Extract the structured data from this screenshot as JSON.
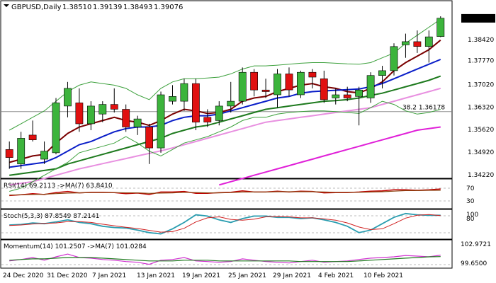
{
  "colors": {
    "background": "#ffffff",
    "bull": "#3cb43c",
    "bear": "#e01010",
    "fib": "#808080",
    "price_box": "#000000",
    "price_text": "#ffffff"
  },
  "chart_data": {
    "type": "candlestick",
    "symbol": "GBPUSD,Daily",
    "ohlc_header": [
      "1.38510",
      "1.39139",
      "1.38493",
      "1.39076"
    ],
    "last_price": "1.39076",
    "y_ticks": [
      "1.38420",
      "1.37770",
      "1.37020",
      "1.36320",
      "1.35620",
      "1.34920",
      "1.34220"
    ],
    "x_labels": [
      "24 Dec 2020",
      "31 Dec 2020",
      "7 Jan 2021",
      "13 Jan 2021",
      "19 Jan 2021",
      "25 Jan 2021",
      "29 Jan 2021",
      "4 Feb 2021",
      "10 Feb 2021"
    ],
    "fib_label": "38.2 1.36178",
    "fib_level": 1.36178,
    "ylim": [
      1.3415,
      1.3925
    ],
    "candles": [
      {
        "o": 1.35,
        "h": 1.3525,
        "l": 1.344,
        "c": 1.3475
      },
      {
        "o": 1.3455,
        "h": 1.3555,
        "l": 1.344,
        "c": 1.3535
      },
      {
        "o": 1.3545,
        "h": 1.359,
        "l": 1.3525,
        "c": 1.353
      },
      {
        "o": 1.347,
        "h": 1.3525,
        "l": 1.3455,
        "c": 1.3495
      },
      {
        "o": 1.349,
        "h": 1.366,
        "l": 1.3485,
        "c": 1.3645
      },
      {
        "o": 1.3635,
        "h": 1.371,
        "l": 1.36,
        "c": 1.369
      },
      {
        "o": 1.3645,
        "h": 1.369,
        "l": 1.3555,
        "c": 1.358
      },
      {
        "o": 1.358,
        "h": 1.365,
        "l": 1.356,
        "c": 1.3635
      },
      {
        "o": 1.361,
        "h": 1.365,
        "l": 1.3585,
        "c": 1.364
      },
      {
        "o": 1.364,
        "h": 1.369,
        "l": 1.3615,
        "c": 1.3625
      },
      {
        "o": 1.3625,
        "h": 1.364,
        "l": 1.3555,
        "c": 1.357
      },
      {
        "o": 1.357,
        "h": 1.3605,
        "l": 1.3545,
        "c": 1.3595
      },
      {
        "o": 1.357,
        "h": 1.358,
        "l": 1.3455,
        "c": 1.3505
      },
      {
        "o": 1.3505,
        "h": 1.368,
        "l": 1.349,
        "c": 1.367
      },
      {
        "o": 1.365,
        "h": 1.37,
        "l": 1.364,
        "c": 1.3665
      },
      {
        "o": 1.365,
        "h": 1.372,
        "l": 1.362,
        "c": 1.3705
      },
      {
        "o": 1.3705,
        "h": 1.372,
        "l": 1.356,
        "c": 1.3585
      },
      {
        "o": 1.36,
        "h": 1.3625,
        "l": 1.357,
        "c": 1.3585
      },
      {
        "o": 1.359,
        "h": 1.365,
        "l": 1.3575,
        "c": 1.3635
      },
      {
        "o": 1.3635,
        "h": 1.371,
        "l": 1.3615,
        "c": 1.365
      },
      {
        "o": 1.365,
        "h": 1.3755,
        "l": 1.364,
        "c": 1.374
      },
      {
        "o": 1.374,
        "h": 1.375,
        "l": 1.3665,
        "c": 1.3685
      },
      {
        "o": 1.3685,
        "h": 1.372,
        "l": 1.366,
        "c": 1.368
      },
      {
        "o": 1.367,
        "h": 1.375,
        "l": 1.363,
        "c": 1.3735
      },
      {
        "o": 1.3735,
        "h": 1.3755,
        "l": 1.3665,
        "c": 1.3685
      },
      {
        "o": 1.367,
        "h": 1.3745,
        "l": 1.366,
        "c": 1.374
      },
      {
        "o": 1.374,
        "h": 1.375,
        "l": 1.369,
        "c": 1.3725
      },
      {
        "o": 1.372,
        "h": 1.3745,
        "l": 1.3645,
        "c": 1.3655
      },
      {
        "o": 1.366,
        "h": 1.369,
        "l": 1.364,
        "c": 1.367
      },
      {
        "o": 1.367,
        "h": 1.3695,
        "l": 1.365,
        "c": 1.366
      },
      {
        "o": 1.3665,
        "h": 1.3695,
        "l": 1.3575,
        "c": 1.3685
      },
      {
        "o": 1.366,
        "h": 1.374,
        "l": 1.3645,
        "c": 1.373
      },
      {
        "o": 1.373,
        "h": 1.376,
        "l": 1.369,
        "c": 1.3745
      },
      {
        "o": 1.3745,
        "h": 1.383,
        "l": 1.373,
        "c": 1.382
      },
      {
        "o": 1.3825,
        "h": 1.386,
        "l": 1.3785,
        "c": 1.3835
      },
      {
        "o": 1.3835,
        "h": 1.387,
        "l": 1.38,
        "c": 1.382
      },
      {
        "o": 1.382,
        "h": 1.387,
        "l": 1.377,
        "c": 1.385
      },
      {
        "o": 1.3851,
        "h": 1.3914,
        "l": 1.3849,
        "c": 1.3908
      }
    ],
    "overlays": [
      {
        "id": "ema-fast",
        "color": "#7a0000",
        "values": [
          1.346,
          1.347,
          1.348,
          1.3485,
          1.352,
          1.355,
          1.357,
          1.358,
          1.359,
          1.36,
          1.359,
          1.3585,
          1.3575,
          1.359,
          1.361,
          1.3625,
          1.362,
          1.3612,
          1.3615,
          1.3625,
          1.365,
          1.366,
          1.3665,
          1.368,
          1.369,
          1.37,
          1.3705,
          1.3695,
          1.369,
          1.368,
          1.3676,
          1.369,
          1.371,
          1.3745,
          1.377,
          1.379,
          1.381,
          1.384
        ]
      },
      {
        "id": "ema-mid",
        "color": "#0a1ec8",
        "values": [
          1.3445,
          1.345,
          1.3455,
          1.346,
          1.3475,
          1.3495,
          1.3515,
          1.3525,
          1.354,
          1.3555,
          1.3565,
          1.357,
          1.357,
          1.3575,
          1.359,
          1.36,
          1.3605,
          1.3605,
          1.361,
          1.362,
          1.363,
          1.364,
          1.365,
          1.366,
          1.3665,
          1.3675,
          1.368,
          1.3682,
          1.3684,
          1.3686,
          1.3688,
          1.3695,
          1.3705,
          1.372,
          1.3735,
          1.375,
          1.3765,
          1.378
        ]
      },
      {
        "id": "sma-green",
        "color": "#1e7a1e",
        "values": [
          1.342,
          1.3425,
          1.343,
          1.3435,
          1.344,
          1.3455,
          1.3465,
          1.3475,
          1.3485,
          1.3495,
          1.3505,
          1.3515,
          1.3525,
          1.3535,
          1.355,
          1.356,
          1.357,
          1.3575,
          1.3585,
          1.3595,
          1.3605,
          1.3615,
          1.3625,
          1.363,
          1.3635,
          1.364,
          1.3645,
          1.365,
          1.3652,
          1.3655,
          1.366,
          1.3668,
          1.3675,
          1.3685,
          1.3695,
          1.3705,
          1.3715,
          1.3728
        ]
      },
      {
        "id": "sma-pink",
        "color": "#e890e0",
        "values": [
          1.339,
          1.3395,
          1.34,
          1.341,
          1.342,
          1.343,
          1.344,
          1.3448,
          1.3456,
          1.3464,
          1.3472,
          1.348,
          1.3488,
          1.3496,
          1.3505,
          1.3515,
          1.3525,
          1.3535,
          1.3545,
          1.3555,
          1.3565,
          1.3575,
          1.3585,
          1.359,
          1.3595,
          1.36,
          1.3605,
          1.361,
          1.3615,
          1.362,
          1.3625,
          1.363,
          1.364,
          1.365,
          1.366,
          1.367,
          1.368,
          1.369
        ]
      },
      {
        "id": "sma-magenta",
        "color": "#e020d8",
        "values": [
          null,
          null,
          null,
          null,
          null,
          null,
          null,
          null,
          null,
          null,
          null,
          null,
          null,
          null,
          null,
          null,
          null,
          null,
          1.339,
          1.34,
          1.341,
          1.342,
          1.343,
          1.344,
          1.345,
          1.346,
          1.347,
          1.348,
          1.349,
          1.35,
          1.351,
          1.352,
          1.353,
          1.354,
          1.355,
          1.356,
          1.3565,
          1.357
        ]
      },
      {
        "id": "bb-upper",
        "color": "#3ca03c",
        "values": [
          1.356,
          1.358,
          1.36,
          1.362,
          1.365,
          1.368,
          1.37,
          1.371,
          1.3705,
          1.37,
          1.369,
          1.367,
          1.3655,
          1.369,
          1.371,
          1.372,
          1.372,
          1.3722,
          1.3725,
          1.3735,
          1.375,
          1.376,
          1.376,
          1.3762,
          1.3765,
          1.3768,
          1.377,
          1.377,
          1.3768,
          1.3766,
          1.3765,
          1.377,
          1.3785,
          1.38,
          1.383,
          1.3855,
          1.388,
          1.3905
        ]
      },
      {
        "id": "bb-lower",
        "color": "#3ca03c",
        "values": [
          1.337,
          1.338,
          1.34,
          1.342,
          1.344,
          1.346,
          1.349,
          1.35,
          1.351,
          1.352,
          1.354,
          1.352,
          1.3495,
          1.348,
          1.35,
          1.352,
          1.353,
          1.354,
          1.3555,
          1.357,
          1.359,
          1.36,
          1.36,
          1.361,
          1.3615,
          1.3618,
          1.362,
          1.362,
          1.3618,
          1.3615,
          1.3612,
          1.363,
          1.365,
          1.364,
          1.362,
          1.361,
          1.3615,
          1.3625
        ]
      }
    ],
    "rsi": {
      "label": "RSI(14) 69.2113 ->MA(7) 63.8410",
      "levels": [
        "70",
        "30"
      ],
      "values": [
        45,
        48,
        52,
        49,
        56,
        60,
        55,
        57,
        57,
        56,
        52,
        54,
        49,
        58,
        58,
        60,
        53,
        53,
        56,
        57,
        62,
        58,
        58,
        61,
        58,
        61,
        60,
        55,
        56,
        56,
        58,
        61,
        62,
        66,
        66,
        64,
        66,
        69
      ],
      "ma": [
        47,
        48,
        49,
        50,
        52,
        54,
        55,
        56,
        56,
        56,
        55,
        55,
        53,
        54,
        55,
        57,
        56,
        55,
        55,
        56,
        58,
        58,
        58,
        59,
        59,
        59,
        59,
        58,
        57,
        57,
        57,
        58,
        59,
        61,
        63,
        63,
        64,
        64
      ]
    },
    "stoch": {
      "label": "Stoch(5,3,3) 87.8549 87.2141",
      "levels": [
        "100",
        "80"
      ],
      "k": [
        50,
        52,
        58,
        55,
        62,
        70,
        60,
        55,
        45,
        40,
        38,
        30,
        20,
        15,
        35,
        60,
        90,
        85,
        70,
        60,
        75,
        85,
        85,
        80,
        80,
        75,
        78,
        70,
        60,
        45,
        20,
        30,
        55,
        80,
        95,
        90,
        88,
        88
      ],
      "d": [
        48,
        50,
        54,
        56,
        58,
        63,
        63,
        60,
        53,
        47,
        41,
        36,
        29,
        22,
        24,
        37,
        62,
        78,
        82,
        72,
        69,
        73,
        82,
        83,
        82,
        78,
        78,
        74,
        69,
        58,
        42,
        32,
        35,
        55,
        77,
        88,
        91,
        87
      ]
    },
    "momentum": {
      "label": "Momentum(14) 101.2507 ->MA(7) 101.0284",
      "ticks": [
        "102.9721",
        "99.6500"
      ],
      "values": [
        100.4,
        100.6,
        100.9,
        100.5,
        101.0,
        101.4,
        100.9,
        100.8,
        100.6,
        100.5,
        100.3,
        100.2,
        99.9,
        100.5,
        100.6,
        100.9,
        100.4,
        100.3,
        100.2,
        100.3,
        100.7,
        100.5,
        100.3,
        100.2,
        100.1,
        100.3,
        100.5,
        100.2,
        100.3,
        100.4,
        100.6,
        100.8,
        100.9,
        101.0,
        101.2,
        101.1,
        101.0,
        101.25
      ],
      "ma": [
        100.5,
        100.6,
        100.7,
        100.7,
        100.8,
        100.9,
        100.9,
        100.9,
        100.8,
        100.7,
        100.6,
        100.5,
        100.4,
        100.4,
        100.4,
        100.5,
        100.5,
        100.5,
        100.4,
        100.4,
        100.4,
        100.4,
        100.4,
        100.4,
        100.4,
        100.3,
        100.3,
        100.3,
        100.3,
        100.3,
        100.4,
        100.5,
        100.6,
        100.7,
        100.8,
        100.9,
        101.0,
        101.03
      ]
    }
  }
}
